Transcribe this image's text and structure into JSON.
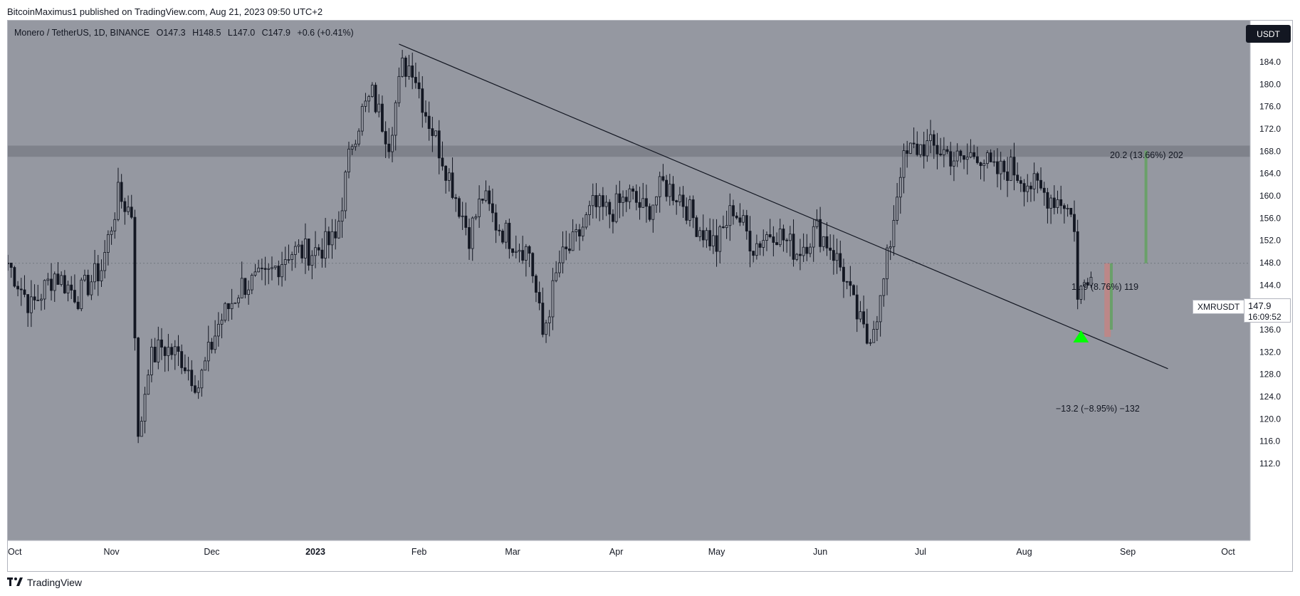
{
  "publisher": "BitcoinMaximus1 published on TradingView.com, Aug 21, 2023 09:50 UTC+2",
  "legend": {
    "pair": "Monero / TetherUS, 1D, BINANCE",
    "o_label": "O",
    "o": "147.3",
    "h_label": "H",
    "h": "148.5",
    "l_label": "L",
    "l": "147.0",
    "c_label": "C",
    "c": "147.9",
    "change": "+0.6 (+0.41%)"
  },
  "currency_button": "USDT",
  "symbol_tag": "XMRUSDT",
  "last_price": "147.9",
  "countdown": "16:09:52",
  "annotations": {
    "target": "20.2 (13.66%) 202",
    "mid": "11.9 (8.76%) 119",
    "stop": "−13.2 (−8.95%) −132"
  },
  "footer_logo": "TradingView",
  "colors": {
    "background": "#9598a1",
    "candle": "#131722",
    "resistance_zone": "#7f828b",
    "support_arrow": "#00ff00",
    "target_bar": "#6aa06a",
    "stop_bar": "#c08585",
    "trendline": "#131722"
  },
  "chart_data": {
    "type": "candlestick",
    "symbol": "XMRUSDT",
    "interval": "1D",
    "y_axis": {
      "min": 112,
      "max": 188,
      "ticks": [
        "112.0",
        "116.0",
        "120.0",
        "124.0",
        "128.0",
        "132.0",
        "136.0",
        "140.0",
        "144.0",
        "148.0",
        "152.0",
        "156.0",
        "160.0",
        "164.0",
        "168.0",
        "172.0",
        "176.0",
        "180.0",
        "184.0"
      ]
    },
    "x_axis": {
      "ticks": [
        "Oct",
        "Nov",
        "Dec",
        "2023",
        "Feb",
        "Mar",
        "Apr",
        "May",
        "Jun",
        "Jul",
        "Aug",
        "Sep",
        "Oct"
      ]
    },
    "price_path": [
      [
        "2022-10-01",
        148
      ],
      [
        "2022-10-08",
        140
      ],
      [
        "2022-10-15",
        146
      ],
      [
        "2022-10-22",
        142
      ],
      [
        "2022-10-29",
        147
      ],
      [
        "2022-11-03",
        160
      ],
      [
        "2022-11-07",
        157
      ],
      [
        "2022-11-09",
        115.5
      ],
      [
        "2022-11-12",
        130
      ],
      [
        "2022-11-16",
        133
      ],
      [
        "2022-11-22",
        131
      ],
      [
        "2022-11-27",
        126
      ],
      [
        "2022-12-03",
        137
      ],
      [
        "2022-12-10",
        144
      ],
      [
        "2022-12-17",
        145
      ],
      [
        "2022-12-24",
        150
      ],
      [
        "2022-12-31",
        150
      ],
      [
        "2023-01-07",
        152
      ],
      [
        "2023-01-12",
        170
      ],
      [
        "2023-01-15",
        175
      ],
      [
        "2023-01-18",
        178
      ],
      [
        "2023-01-23",
        170
      ],
      [
        "2023-01-27",
        183
      ],
      [
        "2023-01-30",
        183.5
      ],
      [
        "2023-02-03",
        175
      ],
      [
        "2023-02-08",
        167
      ],
      [
        "2023-02-12",
        160
      ],
      [
        "2023-02-16",
        153
      ],
      [
        "2023-02-20",
        160
      ],
      [
        "2023-02-24",
        155
      ],
      [
        "2023-03-01",
        152
      ],
      [
        "2023-03-06",
        150
      ],
      [
        "2023-03-10",
        135
      ],
      [
        "2023-03-15",
        148
      ],
      [
        "2023-03-20",
        152
      ],
      [
        "2023-03-25",
        158
      ],
      [
        "2023-03-30",
        157
      ],
      [
        "2023-04-05",
        160
      ],
      [
        "2023-04-10",
        157
      ],
      [
        "2023-04-15",
        162
      ],
      [
        "2023-04-20",
        160
      ],
      [
        "2023-04-25",
        155
      ],
      [
        "2023-05-01",
        151
      ],
      [
        "2023-05-06",
        158
      ],
      [
        "2023-05-12",
        151
      ],
      [
        "2023-05-18",
        154
      ],
      [
        "2023-05-25",
        150
      ],
      [
        "2023-05-31",
        154
      ],
      [
        "2023-06-04",
        151
      ],
      [
        "2023-06-08",
        146
      ],
      [
        "2023-06-11",
        140
      ],
      [
        "2023-06-15",
        134
      ],
      [
        "2023-06-19",
        141
      ],
      [
        "2023-06-22",
        152
      ],
      [
        "2023-06-25",
        165
      ],
      [
        "2023-06-28",
        168
      ],
      [
        "2023-07-02",
        169
      ],
      [
        "2023-07-08",
        168
      ],
      [
        "2023-07-13",
        166
      ],
      [
        "2023-07-18",
        168
      ],
      [
        "2023-07-23",
        164
      ],
      [
        "2023-07-28",
        165
      ],
      [
        "2023-08-03",
        162
      ],
      [
        "2023-08-08",
        160
      ],
      [
        "2023-08-13",
        159
      ],
      [
        "2023-08-16",
        155
      ],
      [
        "2023-08-17",
        141
      ],
      [
        "2023-08-18",
        143
      ],
      [
        "2023-08-20",
        146
      ],
      [
        "2023-08-21",
        147.9
      ]
    ],
    "resistance_zone": [
      167,
      169
    ],
    "trendline": {
      "start": [
        "2023-01-26",
        187.2
      ],
      "end": [
        "2023-09-13",
        129.0
      ]
    },
    "support_marker": {
      "date": "2023-08-18",
      "value": 135
    },
    "position": {
      "entry": 147.9,
      "stop": 134.7,
      "target": 168.1
    },
    "last_price": 147.9
  }
}
